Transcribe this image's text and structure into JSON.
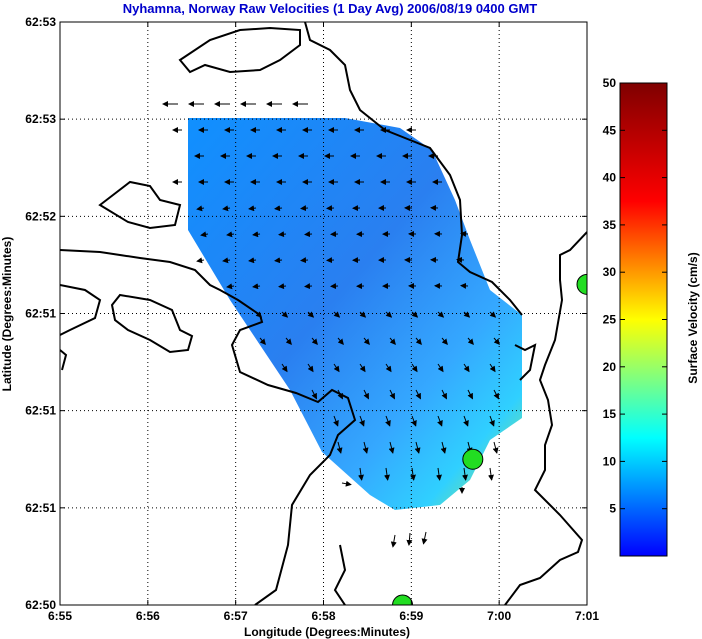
{
  "chart_data": {
    "type": "heatmap",
    "title": "Nyhamna, Norway Raw Velocities (1 Day Avg) 2006/08/19 0400 GMT",
    "xlabel": "Longitude (Degrees:Minutes)",
    "ylabel": "Latitude (Degrees:Minutes)",
    "x_ticks": [
      "6:55",
      "6:56",
      "6:57",
      "6:58",
      "6:59",
      "7:00",
      "7:01"
    ],
    "y_ticks": [
      "62:53",
      "62:53",
      "62:52",
      "62:51",
      "62:51",
      "62:51",
      "62:50"
    ],
    "grid": true,
    "colorbar": {
      "label": "Surface Velocity (cm/s)",
      "min": 0,
      "max": 50,
      "ticks": [
        5,
        10,
        15,
        20,
        25,
        30,
        35,
        40,
        45,
        50
      ]
    },
    "colormap": "jet",
    "stations": [
      {
        "lon_min": 6.0,
        "lat_min": 51.65
      },
      {
        "lon_min": 4.7,
        "lat_min": 50.75
      },
      {
        "lon_min": 3.9,
        "lat_min": 50.0
      }
    ],
    "station_color": "#22dd22",
    "arrows_shown": true
  }
}
